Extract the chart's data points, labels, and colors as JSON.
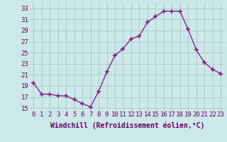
{
  "x": [
    0,
    1,
    2,
    3,
    4,
    5,
    6,
    7,
    8,
    9,
    10,
    11,
    12,
    13,
    14,
    15,
    16,
    17,
    18,
    19,
    20,
    21,
    22,
    23
  ],
  "y": [
    19.5,
    17.5,
    17.5,
    17.2,
    17.2,
    16.5,
    15.8,
    15.2,
    18.0,
    21.5,
    24.5,
    25.7,
    27.5,
    28.0,
    30.5,
    31.5,
    32.5,
    32.5,
    32.5,
    29.2,
    25.5,
    23.2,
    22.0,
    21.2
  ],
  "line_color": "#882288",
  "marker": "+",
  "markersize": 4,
  "markeredgewidth": 1.2,
  "linewidth": 1.0,
  "bg_color": "#cce8e8",
  "grid_color": "#aacccc",
  "xlabel": "Windchill (Refroidissement éolien,°C)",
  "xlabel_fontsize": 7,
  "tick_fontsize": 6.5,
  "ylim": [
    14.5,
    34
  ],
  "xlim": [
    -0.5,
    23.5
  ],
  "yticks": [
    15,
    17,
    19,
    21,
    23,
    25,
    27,
    29,
    31,
    33
  ],
  "xticks": [
    0,
    1,
    2,
    3,
    4,
    5,
    6,
    7,
    8,
    9,
    10,
    11,
    12,
    13,
    14,
    15,
    16,
    17,
    18,
    19,
    20,
    21,
    22,
    23
  ],
  "xtick_labels": [
    "0",
    "1",
    "2",
    "3",
    "4",
    "5",
    "6",
    "7",
    "8",
    "9",
    "10",
    "11",
    "12",
    "13",
    "14",
    "15",
    "16",
    "17",
    "18",
    "19",
    "20",
    "21",
    "22",
    "23"
  ],
  "label_color": "#660066"
}
